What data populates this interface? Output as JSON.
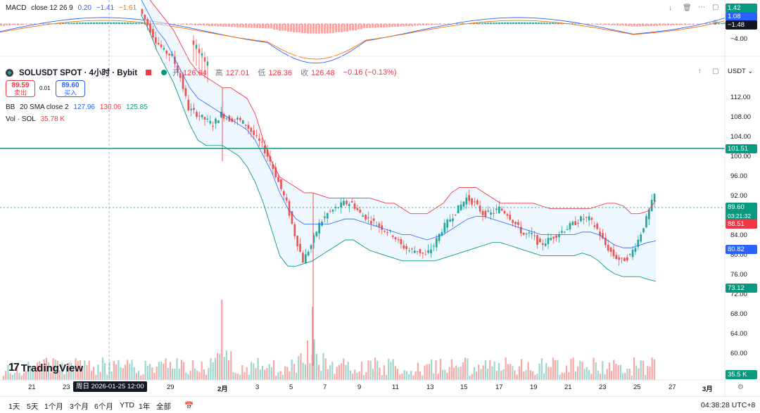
{
  "macd": {
    "label": "MACD",
    "params": "close 12 26 9",
    "v1": "0.20",
    "v2": "−1.41",
    "v3": "−1.61",
    "scale_top": "1.42",
    "scale_mid": "1.08",
    "scale_cur": "−1.48",
    "scale_low": "−4.00"
  },
  "symbol": {
    "title": "SOLUSDT SPOT · 4小时 · Bybit",
    "open_label": "开",
    "open": "126.64",
    "high_label": "高",
    "high": "127.01",
    "low_label": "低",
    "low": "126.36",
    "close_label": "收",
    "close": "126.48",
    "change": "−0.16 (−0.13%)"
  },
  "trade": {
    "sell_price": "89.59",
    "sell_label": "卖出",
    "spread": "0.01",
    "buy_price": "89.60",
    "buy_label": "买入"
  },
  "bb": {
    "label": "BB",
    "params": "20 SMA close 2",
    "basis": "127.96",
    "upper": "130.06",
    "lower": "125.85"
  },
  "vol": {
    "label": "Vol · SOL",
    "value": "35.78 K"
  },
  "currency": "USDT",
  "price_axis": [
    "112.00",
    "108.00",
    "104.00",
    "100.00",
    "96.00",
    "92.00",
    "88.00",
    "84.00",
    "80.00",
    "76.00",
    "72.00",
    "68.00",
    "64.00",
    "60.00"
  ],
  "tags": {
    "hline": "101.51",
    "current": "89.60",
    "countdown": "03:21:32",
    "upper": "88.51",
    "basis": "80.82",
    "lower": "73.12",
    "volume": "35.5 K"
  },
  "time_axis": [
    "21",
    "23",
    "29",
    "2月",
    "3",
    "5",
    "7",
    "9",
    "11",
    "13",
    "15",
    "17",
    "19",
    "21",
    "23",
    "25",
    "27",
    "3月"
  ],
  "crosshair_time": "周日 2026-01-25 12:00",
  "ranges": [
    "1天",
    "5天",
    "1个月",
    "3个月",
    "6个月",
    "YTD",
    "1年",
    "全部"
  ],
  "clock": "04:38:28 UTC+8",
  "brand": "TradingView",
  "colors": {
    "up": "#26a69a",
    "down": "#ef5350",
    "bb_upper": "#f23645",
    "bb_lower": "#089981",
    "bb_basis": "#2962ff",
    "hline": "#089981"
  },
  "chart_data": {
    "type": "line",
    "y_range": [
      57,
      116
    ],
    "horizontal_line": 101.51,
    "current_price": 89.6,
    "price_path": [
      125,
      122,
      119,
      117,
      116,
      112,
      106,
      105,
      104,
      103,
      105,
      104,
      104,
      103,
      101,
      99,
      96,
      92,
      88,
      82,
      77,
      80,
      84,
      86,
      87,
      88,
      88,
      86,
      85,
      84,
      83,
      82,
      80,
      79,
      79,
      78,
      80,
      83,
      85,
      87,
      89,
      88,
      86,
      86,
      87,
      86,
      84,
      82,
      82,
      80,
      81,
      82,
      83,
      84,
      85,
      85,
      83,
      80,
      78,
      77,
      78,
      81,
      85,
      89.6
    ],
    "bb_upper": [
      130,
      127,
      125,
      123,
      121,
      118,
      115,
      113,
      112,
      111,
      110,
      110,
      109,
      108,
      105,
      100,
      96,
      93,
      92,
      91,
      90,
      90,
      89.5,
      89,
      89,
      89,
      89,
      89,
      89,
      88.5,
      88,
      88,
      87,
      86,
      86,
      86,
      87,
      88,
      90,
      91,
      91,
      91,
      90,
      89,
      88,
      88,
      88,
      88,
      88,
      87.5,
      87,
      87,
      87,
      87,
      87,
      87,
      87.5,
      88,
      88,
      87.5,
      86,
      86,
      86.5,
      88.5
    ],
    "bb_basis": [
      127,
      124,
      121,
      119,
      116,
      113,
      110,
      108,
      107,
      106,
      105,
      104,
      103,
      102,
      100,
      97,
      94,
      90,
      87,
      85,
      84,
      84,
      84,
      84,
      84.5,
      85,
      85,
      84.5,
      84,
      83.5,
      83,
      82.5,
      82,
      82,
      81.5,
      81,
      81.5,
      82,
      83,
      84,
      85,
      85.5,
      85.5,
      85,
      84.5,
      84,
      83.5,
      83,
      82.5,
      82,
      82,
      82,
      82,
      82,
      82.5,
      82.5,
      82,
      81,
      80,
      79.5,
      79.5,
      80,
      80.5,
      80.82
    ],
    "bb_lower": [
      124,
      121,
      117,
      114,
      111,
      107,
      103,
      100,
      99,
      99,
      99,
      98,
      97,
      95,
      92,
      88,
      83,
      78,
      76,
      76,
      76.5,
      77,
      78,
      79,
      80,
      81,
      81,
      80,
      79,
      78.5,
      78,
      77.5,
      77,
      77,
      77,
      77,
      77,
      77.5,
      78,
      78.5,
      79,
      79.5,
      80,
      80.5,
      80.5,
      80,
      79.5,
      79,
      78.5,
      78,
      78,
      78,
      78,
      78,
      78.5,
      78,
      77,
      75.5,
      74.5,
      74,
      74,
      74,
      73.5,
      73.12
    ],
    "volume_spikes": [
      {
        "x": "2月 1",
        "level": "high"
      },
      {
        "x": "2月 6",
        "level": "very high"
      }
    ]
  }
}
